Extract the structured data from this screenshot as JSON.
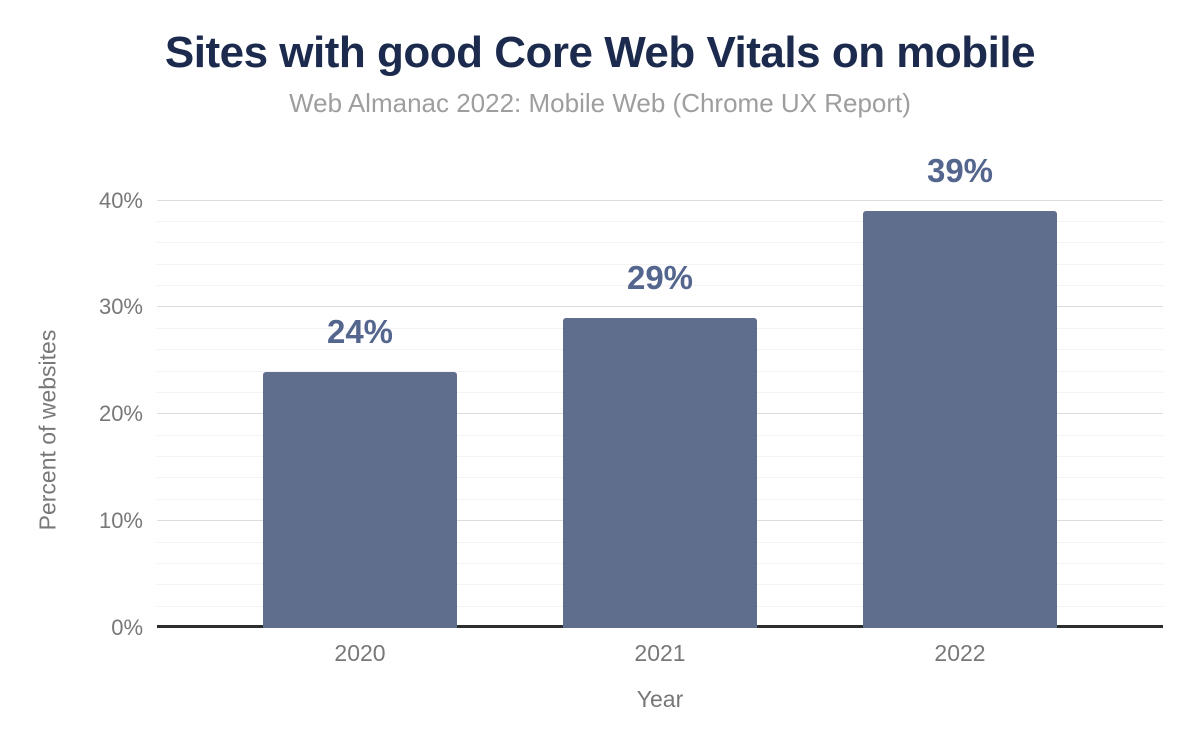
{
  "page": {
    "background": "#ffffff"
  },
  "chart_data": {
    "type": "bar",
    "title": "Sites with good Core Web Vitals on mobile",
    "subtitle": "Web Almanac 2022: Mobile Web (Chrome UX Report)",
    "xlabel": "Year",
    "ylabel": "Percent of websites",
    "categories": [
      "2020",
      "2021",
      "2022"
    ],
    "values": [
      24,
      29,
      39
    ],
    "data_labels": [
      "24%",
      "29%",
      "39%"
    ],
    "ylim": [
      0,
      40
    ],
    "yticks": [
      {
        "value": 0,
        "label": "0%"
      },
      {
        "value": 10,
        "label": "10%"
      },
      {
        "value": 20,
        "label": "20%"
      },
      {
        "value": 30,
        "label": "30%"
      },
      {
        "value": 40,
        "label": "40%"
      }
    ],
    "grid": {
      "major_step": 10,
      "minor_step": 2,
      "visible": true
    },
    "legend": "none",
    "colors": {
      "bar": "#5f6e8c",
      "data_label": "#54668e",
      "title": "#1c2b4d",
      "subtitle": "#9e9e9e",
      "axis_text": "#787878",
      "gridline_major": "#dcdcdc",
      "gridline_minor": "#f3f3f3",
      "axis_line": "#2d2d2d"
    }
  }
}
